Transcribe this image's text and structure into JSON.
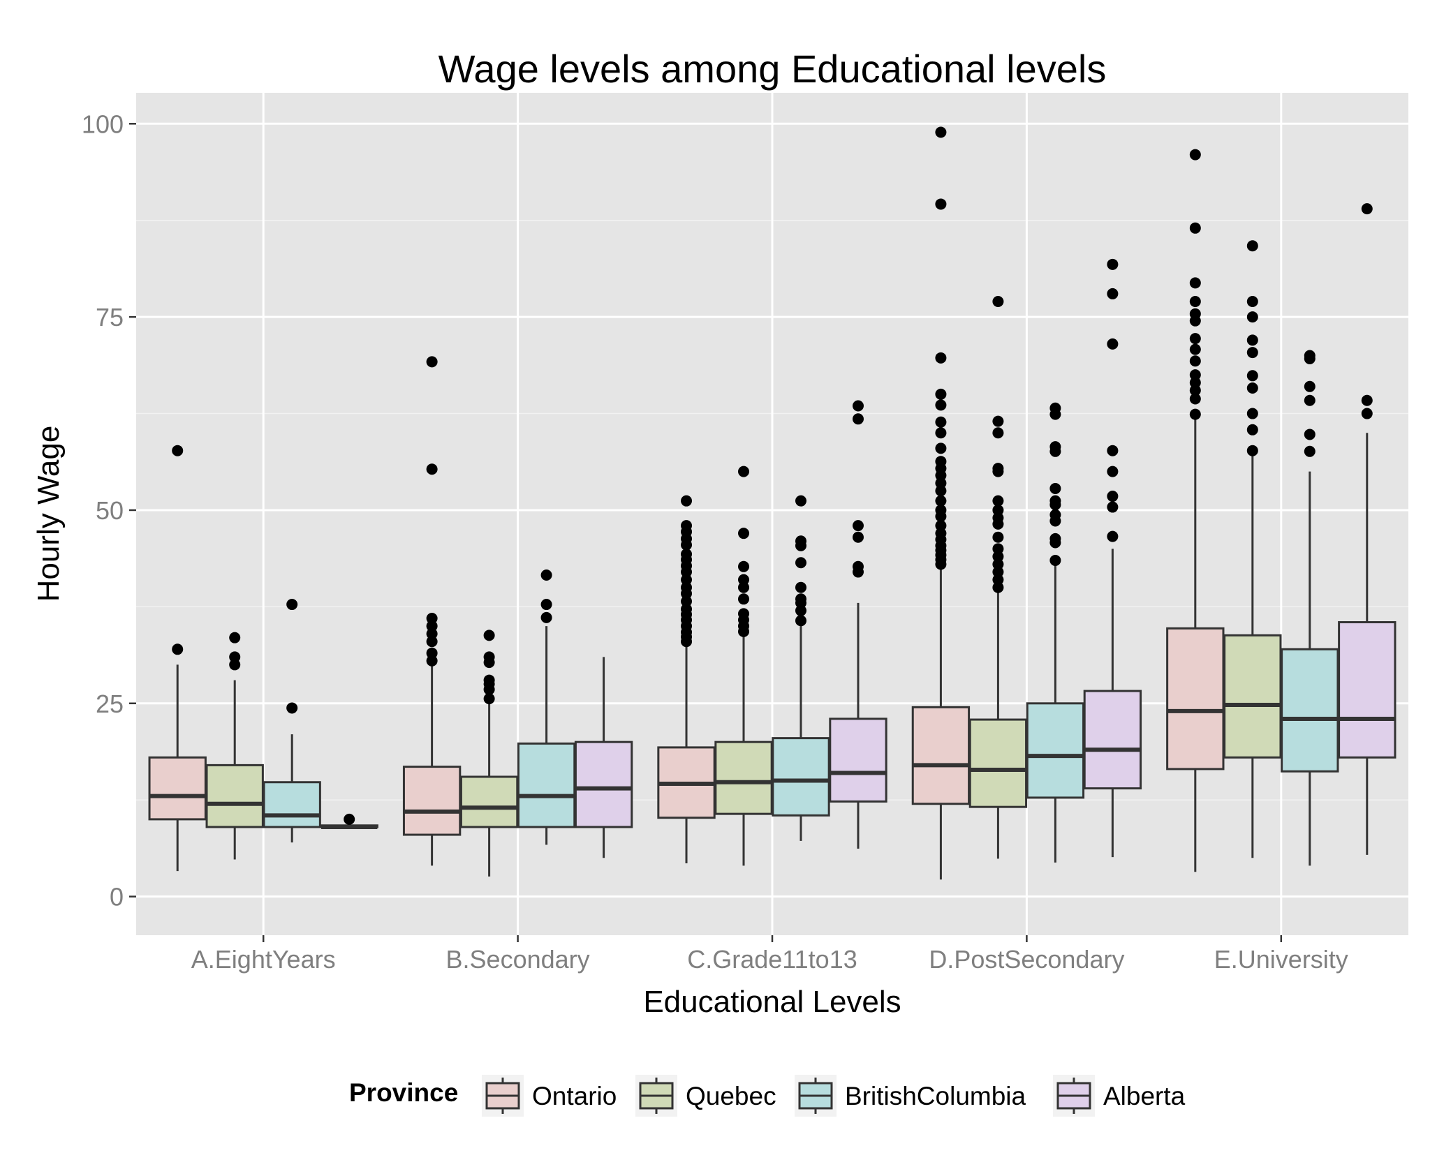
{
  "chart_data": {
    "type": "boxplot",
    "title": "Wage levels among Educational levels",
    "xlabel": "Educational Levels",
    "ylabel": "Hourly Wage",
    "ylim": [
      -5,
      104
    ],
    "yticks": [
      0,
      25,
      50,
      75,
      100
    ],
    "grid": true,
    "legend_position": "bottom",
    "legend_title": "Province",
    "categories": [
      "A.EightYears",
      "B.Secondary",
      "C.Grade11to13",
      "D.PostSecondary",
      "E.University"
    ],
    "series": [
      {
        "name": "Ontario",
        "color": "#f8766d",
        "boxes": [
          {
            "low": 3.3,
            "q1": 10,
            "median": 13,
            "q3": 18,
            "high": 30,
            "outliers": [
              32,
              57.7
            ]
          },
          {
            "low": 4,
            "q1": 8,
            "median": 11,
            "q3": 16.8,
            "high": 30,
            "outliers": [
              30.5,
              31.5,
              33,
              34,
              35,
              36,
              55.3,
              69.2
            ]
          },
          {
            "low": 4.3,
            "q1": 10.2,
            "median": 14.6,
            "q3": 19.3,
            "high": 33,
            "outliers": [
              33,
              33.6,
              34.2,
              35,
              35.8,
              36.5,
              37.2,
              38.2,
              39.2,
              40,
              41,
              42,
              42.8,
              43.6,
              44.3,
              45.5,
              46.3,
              47.2,
              48,
              51.2
            ]
          },
          {
            "low": 2.2,
            "q1": 12,
            "median": 17,
            "q3": 24.5,
            "high": 43,
            "outliers": [
              43,
              43.6,
              44.2,
              44.8,
              45.4,
              46.2,
              47,
              48,
              49.2,
              50,
              51.2,
              52.5,
              53.5,
              54.5,
              55.4,
              56.3,
              58,
              60,
              61.4,
              63.6,
              65,
              69.7,
              89.6,
              98.9
            ]
          },
          {
            "low": 3.2,
            "q1": 16.5,
            "median": 24,
            "q3": 34.7,
            "high": 62,
            "outliers": [
              62.4,
              64.4,
              65.5,
              66.5,
              67.5,
              69.3,
              70.8,
              72.2,
              74.5,
              75.4,
              77,
              79.4,
              86.5,
              96
            ]
          }
        ]
      },
      {
        "name": "Quebec",
        "color": "#7cae00",
        "boxes": [
          {
            "low": 4.8,
            "q1": 9,
            "median": 12,
            "q3": 17,
            "high": 28,
            "outliers": [
              30,
              31,
              33.5
            ]
          },
          {
            "low": 2.6,
            "q1": 9,
            "median": 11.5,
            "q3": 15.5,
            "high": 25,
            "outliers": [
              25.6,
              26.8,
              27.5,
              28,
              30.3,
              31,
              33.8
            ]
          },
          {
            "low": 4,
            "q1": 10.7,
            "median": 14.8,
            "q3": 20,
            "high": 34,
            "outliers": [
              34.3,
              35,
              35.8,
              36.6,
              38.5,
              40,
              41,
              42.7,
              47,
              55
            ]
          },
          {
            "low": 4.9,
            "q1": 11.6,
            "median": 16.4,
            "q3": 22.9,
            "high": 40,
            "outliers": [
              40,
              41,
              42,
              43,
              44,
              45,
              46.5,
              48.2,
              49,
              50,
              51.2,
              55,
              55.4,
              60,
              61.5,
              77
            ]
          },
          {
            "low": 5,
            "q1": 18,
            "median": 24.8,
            "q3": 33.8,
            "high": 57,
            "outliers": [
              57.7,
              60.4,
              62.5,
              65.8,
              67.4,
              70.4,
              72,
              75,
              77,
              84.2
            ]
          }
        ]
      },
      {
        "name": "BritishColumbia",
        "color": "#00bfc4",
        "boxes": [
          {
            "low": 7,
            "q1": 9,
            "median": 10.5,
            "q3": 14.8,
            "high": 21,
            "outliers": [
              24.4,
              37.8
            ]
          },
          {
            "low": 6.7,
            "q1": 9,
            "median": 13,
            "q3": 19.8,
            "high": 35,
            "outliers": [
              36.1,
              37.8,
              41.6
            ]
          },
          {
            "low": 7.2,
            "q1": 10.5,
            "median": 15,
            "q3": 20.5,
            "high": 35,
            "outliers": [
              35.7,
              37,
              38,
              38.5,
              40,
              43.2,
              45.4,
              46,
              51.2
            ]
          },
          {
            "low": 4.4,
            "q1": 12.8,
            "median": 18.2,
            "q3": 25,
            "high": 43,
            "outliers": [
              43.5,
              45.8,
              46.3,
              48.6,
              49.4,
              50.7,
              51.2,
              52.8,
              57.6,
              58.2,
              62.4,
              63.2
            ]
          },
          {
            "low": 4,
            "q1": 16.2,
            "median": 23,
            "q3": 32,
            "high": 55,
            "outliers": [
              57.6,
              59.8,
              64.2,
              66,
              69.6,
              70
            ]
          }
        ]
      },
      {
        "name": "Alberta",
        "color": "#c77cff",
        "boxes": [
          {
            "low": 8.8,
            "q1": 9,
            "median": 9,
            "q3": 9.2,
            "high": 9.3,
            "outliers": [
              10
            ]
          },
          {
            "low": 5,
            "q1": 9,
            "median": 14,
            "q3": 20,
            "high": 31,
            "outliers": []
          },
          {
            "low": 6.2,
            "q1": 12.3,
            "median": 16,
            "q3": 23,
            "high": 38,
            "outliers": [
              42,
              42.7,
              46.5,
              48,
              61.8,
              63.5
            ]
          },
          {
            "low": 5.1,
            "q1": 14,
            "median": 19,
            "q3": 26.6,
            "high": 45,
            "outliers": [
              46.6,
              50.4,
              51.8,
              55,
              57.7,
              71.5,
              78,
              81.8
            ]
          },
          {
            "low": 5.4,
            "q1": 18,
            "median": 23,
            "q3": 35.5,
            "high": 60,
            "outliers": [
              62.5,
              64.2,
              89
            ]
          }
        ]
      }
    ]
  }
}
